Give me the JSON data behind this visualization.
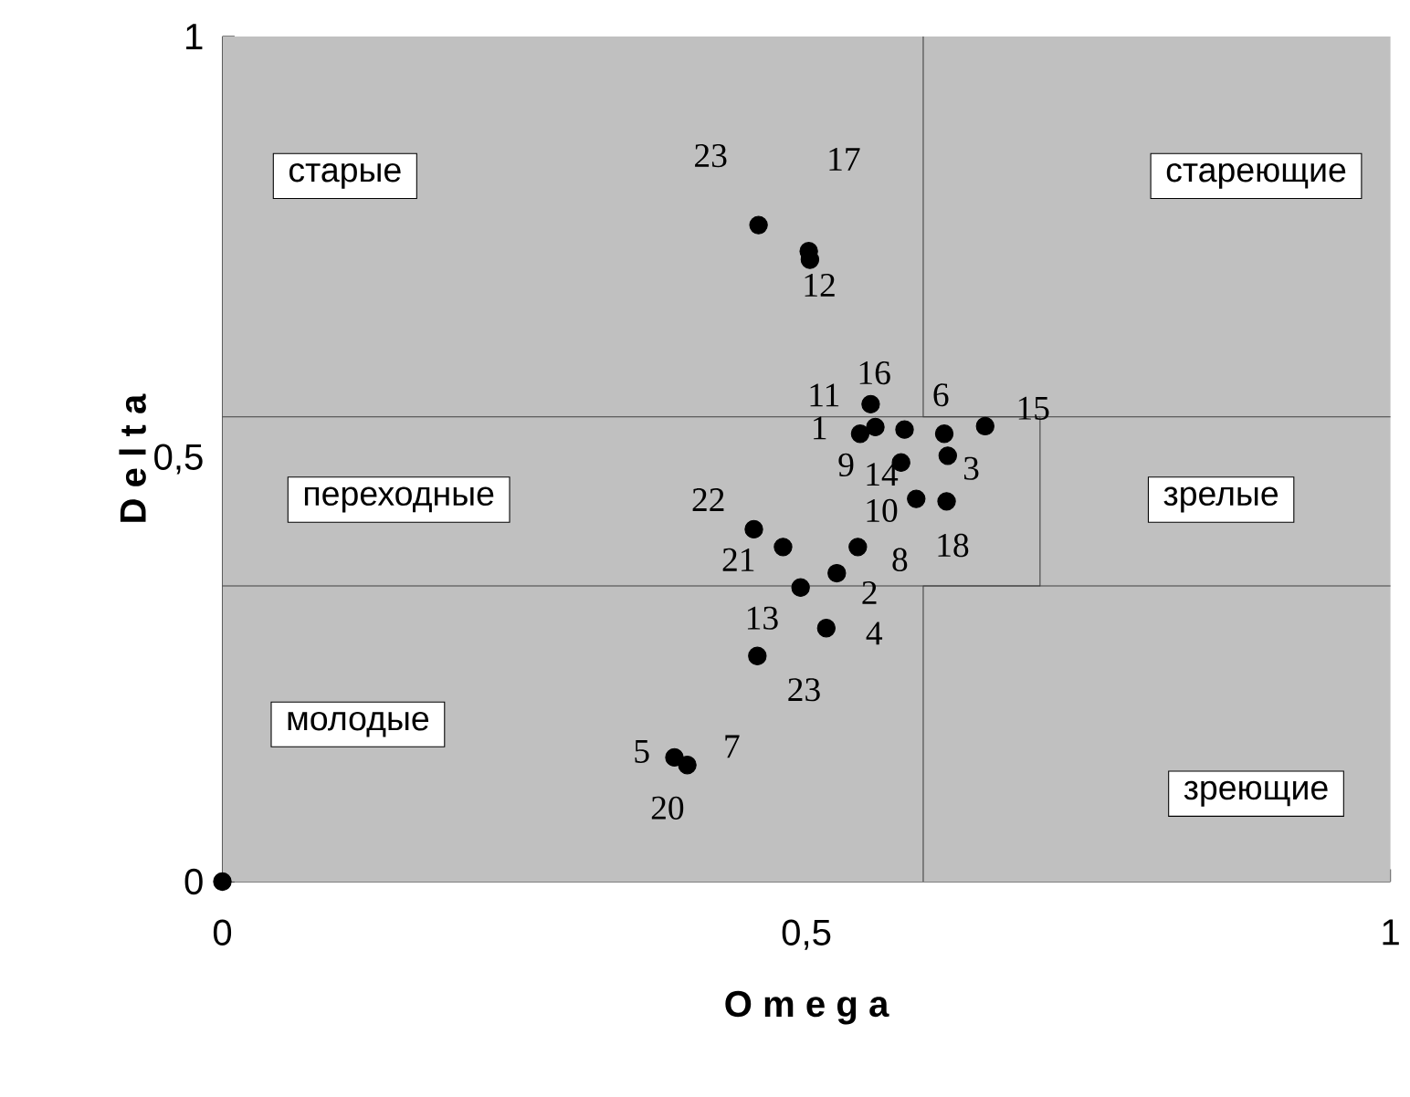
{
  "chart_data": {
    "type": "scatter",
    "xlabel": "O m e g a",
    "ylabel": "D e l t a",
    "xlim": [
      0,
      1
    ],
    "ylim": [
      0,
      1
    ],
    "xticks": [
      0,
      {
        "value": 0.5,
        "label": "0,5"
      },
      1
    ],
    "yticks": [
      0,
      {
        "value": 0.5,
        "label": "0,5"
      },
      1
    ],
    "grid": false,
    "series": [
      {
        "color": "#000000",
        "marker": "circle",
        "x": [
          0,
          0.459,
          0.502,
          0.503,
          0.555,
          0.559,
          0.546,
          0.584,
          0.618,
          0.653,
          0.621,
          0.581,
          0.594,
          0.62,
          0.455,
          0.48,
          0.544,
          0.526,
          0.495,
          0.517,
          0.458,
          0.387,
          0.398
        ],
        "values": [
          0,
          0.777,
          0.746,
          0.736,
          0.565,
          0.538,
          0.53,
          0.535,
          0.53,
          0.539,
          0.504,
          0.496,
          0.453,
          0.45,
          0.417,
          0.396,
          0.396,
          0.365,
          0.348,
          0.3,
          0.267,
          0.147,
          0.138
        ]
      },
      {
        "type": "line",
        "color": "#404040",
        "marker": "none",
        "x": [
          0.6,
          0.6,
          0.7,
          0.7,
          0.6,
          0.6
        ],
        "values": [
          1,
          0.55,
          0.55,
          0.35,
          0.35,
          0
        ]
      }
    ],
    "ref_lines": [
      {
        "axis": "y",
        "value": 0.55,
        "color": "#404040"
      },
      {
        "axis": "y",
        "value": 0.35,
        "color": "#404040"
      }
    ],
    "annotations": [
      "старые",
      "стареющие",
      "переходные",
      "зрелые",
      "молодые",
      "зреющие",
      {
        "text": "23",
        "x": 0.459,
        "y": 0.777
      },
      {
        "text": "17",
        "x": 0.502,
        "y": 0.746
      },
      {
        "text": "12",
        "x": 0.503,
        "y": 0.736
      },
      {
        "text": "16",
        "x": 0.555,
        "y": 0.565
      },
      {
        "text": "11",
        "x": 0.559,
        "y": 0.538
      },
      {
        "text": "1",
        "x": 0.546,
        "y": 0.53
      },
      {
        "text": "6",
        "x": 0.618,
        "y": 0.53
      },
      {
        "text": "15",
        "x": 0.653,
        "y": 0.539
      },
      {
        "text": "9",
        "x": 0.584,
        "y": 0.535
      },
      {
        "text": "14",
        "x": 0.581,
        "y": 0.496
      },
      {
        "text": "3",
        "x": 0.621,
        "y": 0.504
      },
      {
        "text": "22",
        "x": 0.455,
        "y": 0.417
      },
      {
        "text": "10",
        "x": 0.594,
        "y": 0.453
      },
      {
        "text": "18",
        "x": 0.62,
        "y": 0.45
      },
      {
        "text": "21",
        "x": 0.48,
        "y": 0.396
      },
      {
        "text": "8",
        "x": 0.544,
        "y": 0.396
      },
      {
        "text": "2",
        "x": 0.526,
        "y": 0.365
      },
      {
        "text": "13",
        "x": 0.495,
        "y": 0.348
      },
      {
        "text": "4",
        "x": 0.517,
        "y": 0.3
      },
      {
        "text": "23",
        "x": 0.458,
        "y": 0.267
      },
      {
        "text": "5",
        "x": 0.387,
        "y": 0.147
      },
      {
        "text": "7",
        "x": 0.398,
        "y": 0.138
      },
      {
        "text": "20",
        "x": 0.398,
        "y": 0.138
      }
    ]
  }
}
